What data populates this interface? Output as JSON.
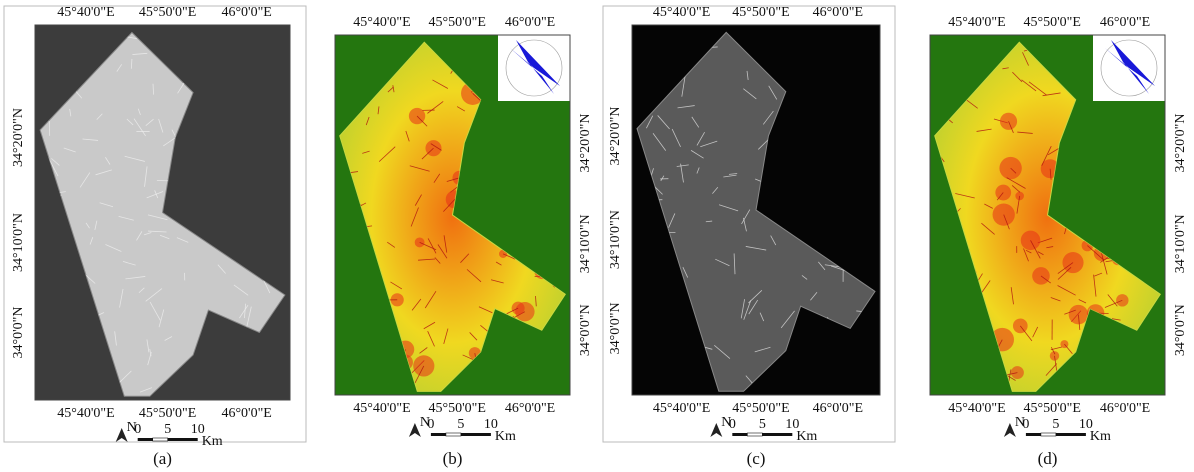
{
  "panels": [
    {
      "caption": "(a)",
      "top_labels": [
        "45°40'0\"E",
        "45°50'0\"E",
        "46°0'0\"E"
      ],
      "bottom_labels": [
        "45°40'0\"E",
        "45°50'0\"E",
        "46°0'0\"E"
      ],
      "side_labels": [
        "34°20'0\"N",
        "34°10'0\"N",
        "34°0'0\"N"
      ],
      "north": "N",
      "scale_ticks": [
        0,
        5,
        10
      ],
      "scale_unit": "Km"
    },
    {
      "caption": "(b)",
      "top_labels": [
        "45°40'0\"E",
        "45°50'0\"E",
        "46°0'0\"E"
      ],
      "bottom_labels": [
        "45°40'0\"E",
        "45°50'0\"E",
        "46°0'0\"E"
      ],
      "side_labels": [
        "34°20'0\"N",
        "34°10'0\"N",
        "34°0'0\"N"
      ],
      "north": "N",
      "scale_ticks": [
        0,
        5,
        10
      ],
      "scale_unit": "Km"
    },
    {
      "caption": "(c)",
      "top_labels": [
        "45°40'0\"E",
        "45°50'0\"E",
        "46°0'0\"E"
      ],
      "bottom_labels": [
        "45°40'0\"E",
        "45°50'0\"E",
        "46°0'0\"E"
      ],
      "side_labels": [
        "34°20'0\"N",
        "34°10'0\"N",
        "34°0'0\"N"
      ],
      "north": "N",
      "scale_ticks": [
        0,
        5,
        10
      ],
      "scale_unit": "Km"
    },
    {
      "caption": "(d)",
      "top_labels": [
        "45°40'0\"E",
        "45°50'0\"E",
        "46°0'0\"E"
      ],
      "bottom_labels": [
        "45°40'0\"E",
        "45°50'0\"E",
        "46°0'0\"E"
      ],
      "side_labels": [
        "34°20'0\"N",
        "34°10'0\"N",
        "34°0'0\"N"
      ],
      "north": "N",
      "scale_ticks": [
        0,
        5,
        10
      ],
      "scale_unit": "Km"
    }
  ]
}
